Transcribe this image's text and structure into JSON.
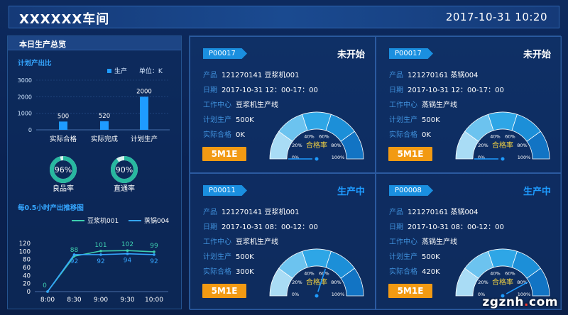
{
  "header": {
    "title": "XXXXXX车间",
    "datetime": "2017-10-31 10:20"
  },
  "summary": {
    "title": "本日生产总览",
    "plan_section": "计划产出比",
    "legend_label": "生产",
    "unit_label": "单位：K",
    "chart_data": {
      "type": "bar",
      "categories": [
        "实际合格",
        "实际完成",
        "计划生产"
      ],
      "values": [
        500,
        520,
        2000
      ],
      "ylim": [
        0,
        3000
      ],
      "yticks": [
        "3000",
        "2000",
        "1000",
        "0"
      ],
      "value_labels": [
        "500",
        "520",
        "2000"
      ]
    },
    "rings": [
      {
        "label": "良品率",
        "value_text": "96%",
        "value": 96
      },
      {
        "label": "直通率",
        "value_text": "90%",
        "value": 90
      }
    ]
  },
  "trend": {
    "title": "每0.5小时产出推移图",
    "chart_data": {
      "type": "line",
      "x": [
        "8:00",
        "8:30",
        "9:00",
        "9:30",
        "10:00"
      ],
      "ylim": [
        0,
        120
      ],
      "yticks": [
        "120",
        "100",
        "80",
        "60",
        "40",
        "20",
        "0"
      ],
      "series": [
        {
          "name": "豆浆机001",
          "values": [
            0,
            88,
            101,
            102,
            99
          ],
          "color": "#3ecfb0"
        },
        {
          "name": "蒸锅004",
          "values": [
            0,
            92,
            92,
            94,
            92
          ],
          "color": "#35a6ff"
        }
      ]
    }
  },
  "cards": [
    {
      "code": "P00017",
      "status": "未开始",
      "status_color": "#ffffff",
      "product_label": "产品",
      "product": "121270141  豆浆机001",
      "date_label": "日期",
      "date": "2017-10-31  12：00-17：00",
      "center_label": "工作中心",
      "center": "豆浆机生产线",
      "plan_label": "计划生产",
      "plan": "500K",
      "actual_label": "实际合格",
      "actual": "0K",
      "button": "5M1E",
      "gauge_label": "合格率",
      "gauge_value": 0
    },
    {
      "code": "P00017",
      "status": "未开始",
      "status_color": "#ffffff",
      "product_label": "产品",
      "product": "121270161  蒸锅004",
      "date_label": "日期",
      "date": "2017-10-31  12：00-17：00",
      "center_label": "工作中心",
      "center": "蒸锅生产线",
      "plan_label": "计划生产",
      "plan": "500K",
      "actual_label": "实际合格",
      "actual": "0K",
      "button": "5M1E",
      "gauge_label": "合格率",
      "gauge_value": 0
    },
    {
      "code": "P00011",
      "status": "生产中",
      "status_color": "#1e9bff",
      "product_label": "产品",
      "product": "121270141  豆浆机001",
      "date_label": "日期",
      "date": "2017-10-31  08：00-12：00",
      "center_label": "工作中心",
      "center": "豆浆机生产线",
      "plan_label": "计划生产",
      "plan": "500K",
      "actual_label": "实际合格",
      "actual": "300K",
      "button": "5M1E",
      "gauge_label": "合格率",
      "gauge_value": 60
    },
    {
      "code": "P00008",
      "status": "生产中",
      "status_color": "#1e9bff",
      "product_label": "产品",
      "product": "121270161  蒸锅004",
      "date_label": "日期",
      "date": "2017-10-31  08：00-12：00",
      "center_label": "工作中心",
      "center": "蒸锅生产线",
      "plan_label": "计划生产",
      "plan": "500K",
      "actual_label": "实际合格",
      "actual": "420K",
      "button": "5M1E",
      "gauge_label": "合格率",
      "gauge_value": 84
    }
  ],
  "gauge_ticks": [
    "0%",
    "20%",
    "40%",
    "60%",
    "80%",
    "100%"
  ],
  "watermark": {
    "prefix": "zgznh",
    "dot": ".",
    "suffix": "com"
  }
}
